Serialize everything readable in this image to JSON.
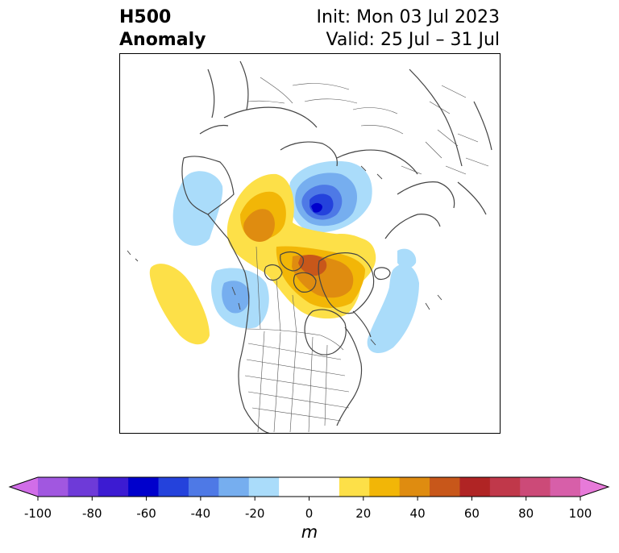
{
  "title": {
    "left_line1": "H500",
    "left_line2": "Anomaly",
    "right_line1": "Init: Mon 03 Jul 2023",
    "right_line2": "Valid: 25 Jul – 31 Jul"
  },
  "colorbar": {
    "unit": "m",
    "min": -100,
    "max": 100,
    "step": 10,
    "extend": "both",
    "colors": [
      "#d16de8",
      "#a157e0",
      "#6e3ad8",
      "#3c1bd2",
      "#0000cc",
      "#2442dc",
      "#4e79e6",
      "#76aeef",
      "#aadcfa",
      "#ffffff",
      "#ffffff",
      "#fde048",
      "#f2b607",
      "#df8c10",
      "#c8571a",
      "#b02424",
      "#c0384a",
      "#cc4a78",
      "#d75fa9",
      "#e77ad9"
    ],
    "tick_values": [
      -100,
      -80,
      -60,
      -40,
      -20,
      0,
      20,
      40,
      60,
      80,
      100
    ],
    "tick_labels": [
      "-100",
      "-80",
      "-60",
      "-40",
      "-20",
      "0",
      "20",
      "40",
      "60",
      "80",
      "100"
    ]
  },
  "map": {
    "projection": "polar stereographic, North America / Arctic",
    "colors": {
      "coast": "#444444",
      "border": "#555555"
    }
  }
}
